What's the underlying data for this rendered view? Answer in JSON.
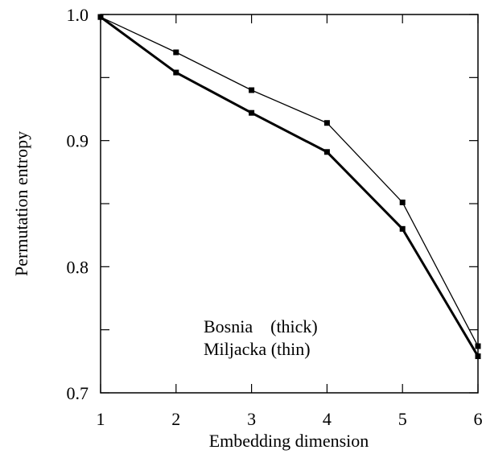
{
  "chart_data": {
    "type": "line",
    "xlabel": "Embedding dimension",
    "ylabel": "Permutation entropy",
    "xlim": [
      1,
      6
    ],
    "ylim": [
      0.7,
      1.0
    ],
    "xticks": [
      1,
      2,
      3,
      4,
      5,
      6
    ],
    "yticks": [
      0.7,
      0.8,
      0.9,
      1.0
    ],
    "x_tick_labels": [
      "1",
      "2",
      "3",
      "4",
      "5",
      "6"
    ],
    "y_tick_labels": [
      "0.7",
      "0.8",
      "0.9",
      "1.0"
    ],
    "grid": false,
    "x": [
      1,
      2,
      3,
      4,
      5,
      6
    ],
    "series": [
      {
        "name": "Bosnia",
        "style_note": "(thick)",
        "values": [
          0.998,
          0.954,
          0.922,
          0.891,
          0.83,
          0.729
        ]
      },
      {
        "name": "Miljacka",
        "style_note": "(thin)",
        "values": [
          0.998,
          0.97,
          0.94,
          0.914,
          0.851,
          0.737
        ]
      }
    ],
    "legend": {
      "placement": "center-bottom",
      "lines": [
        "Bosnia    (thick)",
        "Miljacka (thin)"
      ]
    },
    "colors": {
      "line": "#000000",
      "marker": "#000000"
    }
  }
}
